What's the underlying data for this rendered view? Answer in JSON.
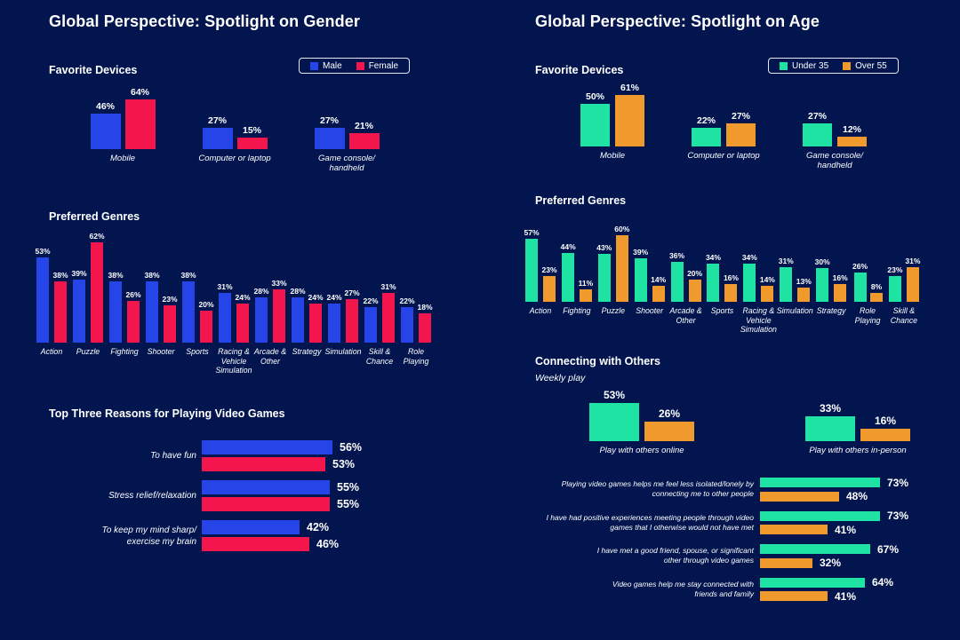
{
  "colors": {
    "background": "#02154E",
    "male": "#2545E8",
    "female": "#F2164C",
    "under35": "#1FE3A2",
    "over55": "#F0992C",
    "text": "#FFFFFF",
    "legend_border": "#E6EAF6"
  },
  "gender_panel": {
    "title": "Global Perspective: Spotlight on Gender",
    "devices_heading": "Favorite Devices",
    "genres_heading": "Preferred Genres",
    "reasons_heading": "Top Three Reasons for Playing Video Games",
    "legend": {
      "male": "Male",
      "female": "Female"
    }
  },
  "age_panel": {
    "title": "Global Perspective: Spotlight on Age",
    "devices_heading": "Favorite Devices",
    "genres_heading": "Preferred Genres",
    "connecting_heading": "Connecting with Others",
    "connecting_subtitle": "Weekly play",
    "legend": {
      "under35": "Under 35",
      "over55": "Over 55"
    }
  },
  "chart_data": [
    {
      "id": "gender-devices",
      "type": "bar",
      "panel": "gender",
      "title": "Favorite Devices",
      "unit": "%",
      "categories": [
        "Mobile",
        "Computer or laptop",
        "Game console/\nhandheld"
      ],
      "series": [
        {
          "name": "Male",
          "color": "male",
          "values": [
            46,
            27,
            27
          ]
        },
        {
          "name": "Female",
          "color": "female",
          "values": [
            64,
            15,
            21
          ]
        }
      ]
    },
    {
      "id": "gender-genres",
      "type": "bar",
      "panel": "gender",
      "title": "Preferred Genres",
      "unit": "%",
      "categories": [
        "Action",
        "Puzzle",
        "Fighting",
        "Shooter",
        "Sports",
        "Racing &\nVehicle\nSimulation",
        "Arcade &\nOther",
        "Strategy",
        "Simulation",
        "Skill &\nChance",
        "Role\nPlaying"
      ],
      "series": [
        {
          "name": "Male",
          "color": "male",
          "values": [
            53,
            39,
            38,
            38,
            38,
            31,
            28,
            28,
            24,
            22,
            22
          ]
        },
        {
          "name": "Female",
          "color": "female",
          "values": [
            38,
            62,
            26,
            23,
            20,
            24,
            33,
            24,
            27,
            31,
            18
          ]
        }
      ]
    },
    {
      "id": "gender-reasons",
      "type": "hbar",
      "panel": "gender",
      "title": "Top Three Reasons for Playing Video Games",
      "unit": "%",
      "categories": [
        "To have fun",
        "Stress relief/relaxation",
        "To keep my mind sharp/\nexercise my brain"
      ],
      "series": [
        {
          "name": "Male",
          "color": "male",
          "values": [
            56,
            55,
            42
          ]
        },
        {
          "name": "Female",
          "color": "female",
          "values": [
            53,
            55,
            46
          ]
        }
      ]
    },
    {
      "id": "age-devices",
      "type": "bar",
      "panel": "age",
      "title": "Favorite Devices",
      "unit": "%",
      "categories": [
        "Mobile",
        "Computer or laptop",
        "Game console/\nhandheld"
      ],
      "series": [
        {
          "name": "Under 35",
          "color": "under35",
          "values": [
            50,
            22,
            27
          ]
        },
        {
          "name": "Over 55",
          "color": "over55",
          "values": [
            61,
            27,
            12
          ]
        }
      ]
    },
    {
      "id": "age-genres",
      "type": "bar",
      "panel": "age",
      "title": "Preferred Genres",
      "unit": "%",
      "categories": [
        "Action",
        "Fighting",
        "Puzzle",
        "Shooter",
        "Arcade &\nOther",
        "Sports",
        "Racing &\nVehicle\nSimulation",
        "Simulation",
        "Strategy",
        "Role\nPlaying",
        "Skill &\nChance"
      ],
      "series": [
        {
          "name": "Under 35",
          "color": "under35",
          "values": [
            57,
            44,
            43,
            39,
            36,
            34,
            34,
            31,
            30,
            26,
            23
          ]
        },
        {
          "name": "Over 55",
          "color": "over55",
          "values": [
            23,
            11,
            60,
            14,
            20,
            16,
            14,
            13,
            16,
            8,
            31
          ]
        }
      ]
    },
    {
      "id": "age-connecting",
      "type": "bar",
      "panel": "age",
      "title": "Connecting with Others",
      "subtitle": "Weekly play",
      "unit": "%",
      "categories": [
        "Play with others online",
        "Play with others in-person"
      ],
      "series": [
        {
          "name": "Under 35",
          "color": "under35",
          "values": [
            53,
            33
          ]
        },
        {
          "name": "Over 55",
          "color": "over55",
          "values": [
            26,
            16
          ]
        }
      ]
    },
    {
      "id": "age-statements",
      "type": "hbar",
      "panel": "age",
      "title": "Connecting with Others",
      "unit": "%",
      "categories": [
        "Playing video games helps me feel less isolated/lonely by\nconnecting me to other people",
        "I have had positive experiences meeting people through video\ngames that I otherwise would not have met",
        "I have met a good friend, spouse, or significant\nother through video games",
        "Video games help me stay connected with\nfriends and family"
      ],
      "series": [
        {
          "name": "Under 35",
          "color": "under35",
          "values": [
            73,
            73,
            67,
            64
          ]
        },
        {
          "name": "Over 55",
          "color": "over55",
          "values": [
            48,
            41,
            32,
            41
          ]
        }
      ]
    }
  ]
}
